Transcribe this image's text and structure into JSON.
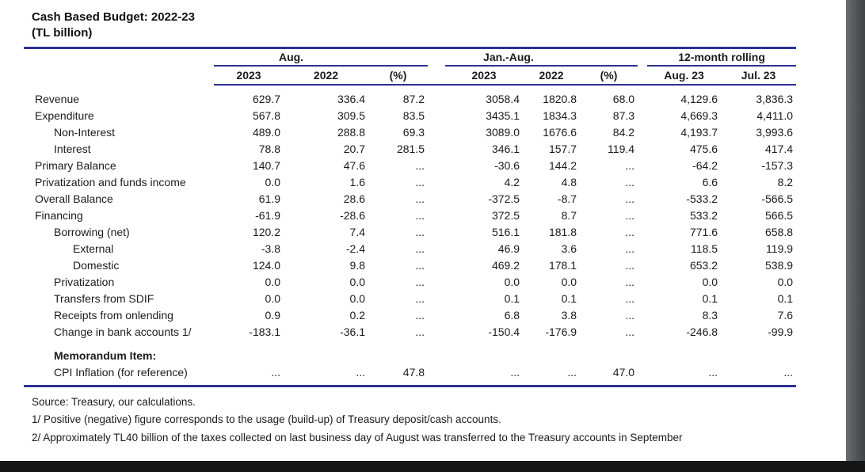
{
  "title": "Cash Based Budget: 2022-23",
  "subtitle": "(TL billion)",
  "colors": {
    "rule": "#2e3192",
    "text": "#1b1b1b",
    "right_band": "#4a4e51",
    "bottom_band": "#161616"
  },
  "table": {
    "groups": {
      "aug": "Aug.",
      "jan_aug": "Jan.-Aug.",
      "rolling": "12-month rolling"
    },
    "columns": {
      "aug_2023": "2023",
      "aug_2022": "2022",
      "aug_pct": "(%)",
      "ja_2023": "2023",
      "ja_2022": "2022",
      "ja_pct": "(%)",
      "roll_aug23": "Aug. 23",
      "roll_jul23": "Jul. 23"
    },
    "rows": [
      {
        "label": "Revenue",
        "indent": 0,
        "bold": false,
        "values": [
          "629.7",
          "336.4",
          "87.2",
          "3058.4",
          "1820.8",
          "68.0",
          "4,129.6",
          "3,836.3"
        ]
      },
      {
        "label": "Expenditure",
        "indent": 0,
        "bold": false,
        "values": [
          "567.8",
          "309.5",
          "83.5",
          "3435.1",
          "1834.3",
          "87.3",
          "4,669.3",
          "4,411.0"
        ]
      },
      {
        "label": "Non-Interest",
        "indent": 1,
        "bold": false,
        "values": [
          "489.0",
          "288.8",
          "69.3",
          "3089.0",
          "1676.6",
          "84.2",
          "4,193.7",
          "3,993.6"
        ]
      },
      {
        "label": "Interest",
        "indent": 1,
        "bold": false,
        "values": [
          "78.8",
          "20.7",
          "281.5",
          "346.1",
          "157.7",
          "119.4",
          "475.6",
          "417.4"
        ]
      },
      {
        "label": "Primary Balance",
        "indent": 0,
        "bold": false,
        "values": [
          "140.7",
          "47.6",
          "...",
          "-30.6",
          "144.2",
          "...",
          "-64.2",
          "-157.3"
        ]
      },
      {
        "label": "Privatization and funds income",
        "indent": 0,
        "bold": false,
        "values": [
          "0.0",
          "1.6",
          "...",
          "4.2",
          "4.8",
          "...",
          "6.6",
          "8.2"
        ]
      },
      {
        "label": "Overall Balance",
        "indent": 0,
        "bold": false,
        "values": [
          "61.9",
          "28.6",
          "...",
          "-372.5",
          "-8.7",
          "...",
          "-533.2",
          "-566.5"
        ]
      },
      {
        "label": "Financing",
        "indent": 0,
        "bold": false,
        "values": [
          "-61.9",
          "-28.6",
          "...",
          "372.5",
          "8.7",
          "...",
          "533.2",
          "566.5"
        ]
      },
      {
        "label": "Borrowing (net)",
        "indent": 1,
        "bold": false,
        "values": [
          "120.2",
          "7.4",
          "...",
          "516.1",
          "181.8",
          "...",
          "771.6",
          "658.8"
        ]
      },
      {
        "label": "External",
        "indent": 2,
        "bold": false,
        "values": [
          "-3.8",
          "-2.4",
          "...",
          "46.9",
          "3.6",
          "...",
          "118.5",
          "119.9"
        ]
      },
      {
        "label": "Domestic",
        "indent": 2,
        "bold": false,
        "values": [
          "124.0",
          "9.8",
          "...",
          "469.2",
          "178.1",
          "...",
          "653.2",
          "538.9"
        ]
      },
      {
        "label": "Privatization",
        "indent": 1,
        "bold": false,
        "values": [
          "0.0",
          "0.0",
          "...",
          "0.0",
          "0.0",
          "...",
          "0.0",
          "0.0"
        ]
      },
      {
        "label": "Transfers from SDIF",
        "indent": 1,
        "bold": false,
        "values": [
          "0.0",
          "0.0",
          "...",
          "0.1",
          "0.1",
          "...",
          "0.1",
          "0.1"
        ]
      },
      {
        "label": "Receipts from onlending",
        "indent": 1,
        "bold": false,
        "values": [
          "0.9",
          "0.2",
          "...",
          "6.8",
          "3.8",
          "...",
          "8.3",
          "7.6"
        ]
      },
      {
        "label": "Change in bank accounts 1/",
        "indent": 1,
        "bold": false,
        "values": [
          "-183.1",
          "-36.1",
          "...",
          "-150.4",
          "-176.9",
          "...",
          "-246.8",
          "-99.9"
        ]
      },
      {
        "label": "Memorandum Item:",
        "indent": 1,
        "bold": true,
        "spacer_before": true,
        "values": [
          "",
          "",
          "",
          "",
          "",
          "",
          "",
          ""
        ]
      },
      {
        "label": "CPI Inflation (for reference)",
        "indent": 1,
        "bold": false,
        "values": [
          "...",
          "...",
          "47.8",
          "...",
          "...",
          "47.0",
          "...",
          "..."
        ]
      }
    ]
  },
  "footnotes": {
    "source": "Source: Treasury, our calculations.",
    "note1": "1/ Positive (negative) figure corresponds to the usage (build-up) of Treasury deposit/cash accounts.",
    "note2": "2/ Approximately TL40 billion of the taxes collected on last business day of August was transferred to the Treasury accounts in September"
  }
}
